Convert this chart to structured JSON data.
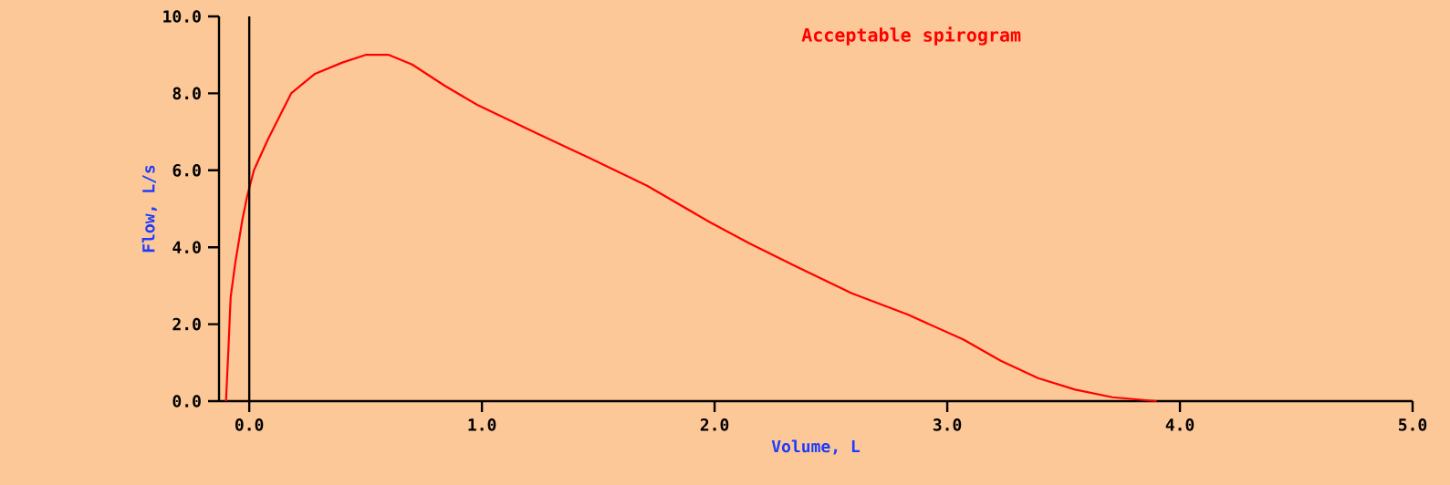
{
  "chart_data": {
    "type": "line",
    "title": "Acceptable spirogram",
    "xlabel": "Volume, L",
    "ylabel": "Flow, L/s",
    "xlim": [
      -0.13,
      5.0
    ],
    "ylim": [
      0,
      10
    ],
    "xticks": [
      {
        "value": 0,
        "label": "0.0"
      },
      {
        "value": 1,
        "label": "1.0"
      },
      {
        "value": 2,
        "label": "2.0"
      },
      {
        "value": 3,
        "label": "3.0"
      },
      {
        "value": 4,
        "label": "4.0"
      },
      {
        "value": 5,
        "label": "5.0"
      }
    ],
    "yticks": [
      {
        "value": 0,
        "label": "0.0"
      },
      {
        "value": 2,
        "label": "2.0"
      },
      {
        "value": 4,
        "label": "4.0"
      },
      {
        "value": 6,
        "label": "6.0"
      },
      {
        "value": 8,
        "label": "8.0"
      },
      {
        "value": 10,
        "label": "10.0"
      }
    ],
    "grid": false,
    "ref_lines": [
      {
        "axis": "x",
        "value": 0,
        "color": "#000000"
      }
    ],
    "series": [
      {
        "color": "#ff0000",
        "x": [
          -0.1,
          -0.09,
          -0.08,
          -0.06,
          -0.03,
          -0.01,
          0.02,
          0.08,
          0.18,
          0.28,
          0.4,
          0.5,
          0.6,
          0.7,
          0.84,
          0.98,
          1.24,
          1.47,
          1.71,
          1.98,
          2.15,
          2.35,
          2.59,
          2.83,
          3.07,
          3.23,
          3.39,
          3.55,
          3.71,
          3.9
        ],
        "values": [
          0,
          1.3,
          2.7,
          3.6,
          4.7,
          5.3,
          6.0,
          6.8,
          8.0,
          8.5,
          8.8,
          9.0,
          9.0,
          8.75,
          8.2,
          7.7,
          6.95,
          6.3,
          5.6,
          4.65,
          4.1,
          3.5,
          2.8,
          2.25,
          1.6,
          1.05,
          0.6,
          0.3,
          0.1,
          0.0
        ]
      }
    ]
  }
}
